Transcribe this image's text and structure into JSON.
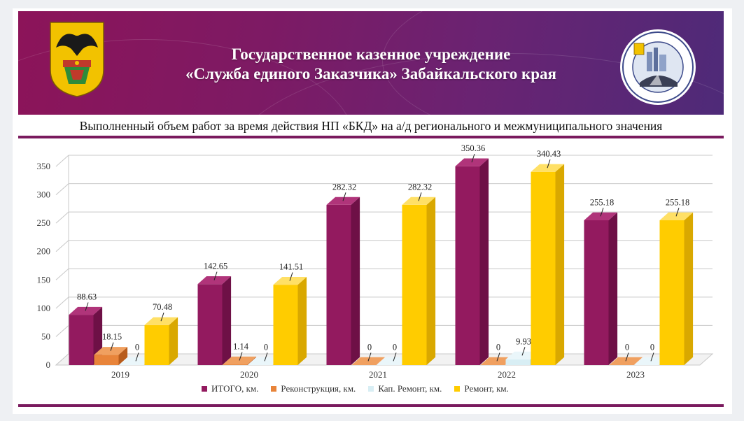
{
  "header": {
    "line1": "Государственное казенное учреждение",
    "line2": "«Служба единого Заказчика» Забайкальского края"
  },
  "subtitle": "Выполненный объем работ за время действия НП «БКД» на а/д регионального и межмуниципального значения",
  "colors": {
    "brand": "#7a1a5e",
    "itogo": "#931a5f",
    "reconstruction": "#e8843a",
    "kap_remont": "#d8eef4",
    "remont": "#ffcc00"
  },
  "chart_data": {
    "type": "bar",
    "categories": [
      "2019",
      "2020",
      "2021",
      "2022",
      "2023"
    ],
    "series": [
      {
        "name": "ИТОГО, км.",
        "values": [
          88.63,
          142.65,
          282.32,
          350.36,
          255.18
        ],
        "labels": [
          "88.63",
          "142.65",
          "282.32",
          "350.36",
          "255.18"
        ]
      },
      {
        "name": "Реконструкция, км.",
        "values": [
          18.15,
          1.14,
          0,
          0,
          0
        ],
        "labels": [
          "18.15",
          "1.14",
          "0",
          "0",
          "0"
        ]
      },
      {
        "name": "Кап. Ремонт, км.",
        "values": [
          0,
          0,
          0,
          9.93,
          0
        ],
        "labels": [
          "0",
          "0",
          "0",
          "9.93",
          "0"
        ]
      },
      {
        "name": "Ремонт, км.",
        "values": [
          70.48,
          141.51,
          282.32,
          340.43,
          255.18
        ],
        "labels": [
          "70.48",
          "141.51",
          "282.32",
          "340.43",
          "255.18"
        ]
      }
    ],
    "yticks": [
      "0",
      "50",
      "100",
      "150",
      "200",
      "250",
      "300",
      "350"
    ],
    "ylim": [
      0,
      350
    ],
    "grid": true,
    "legend": "bottom"
  }
}
